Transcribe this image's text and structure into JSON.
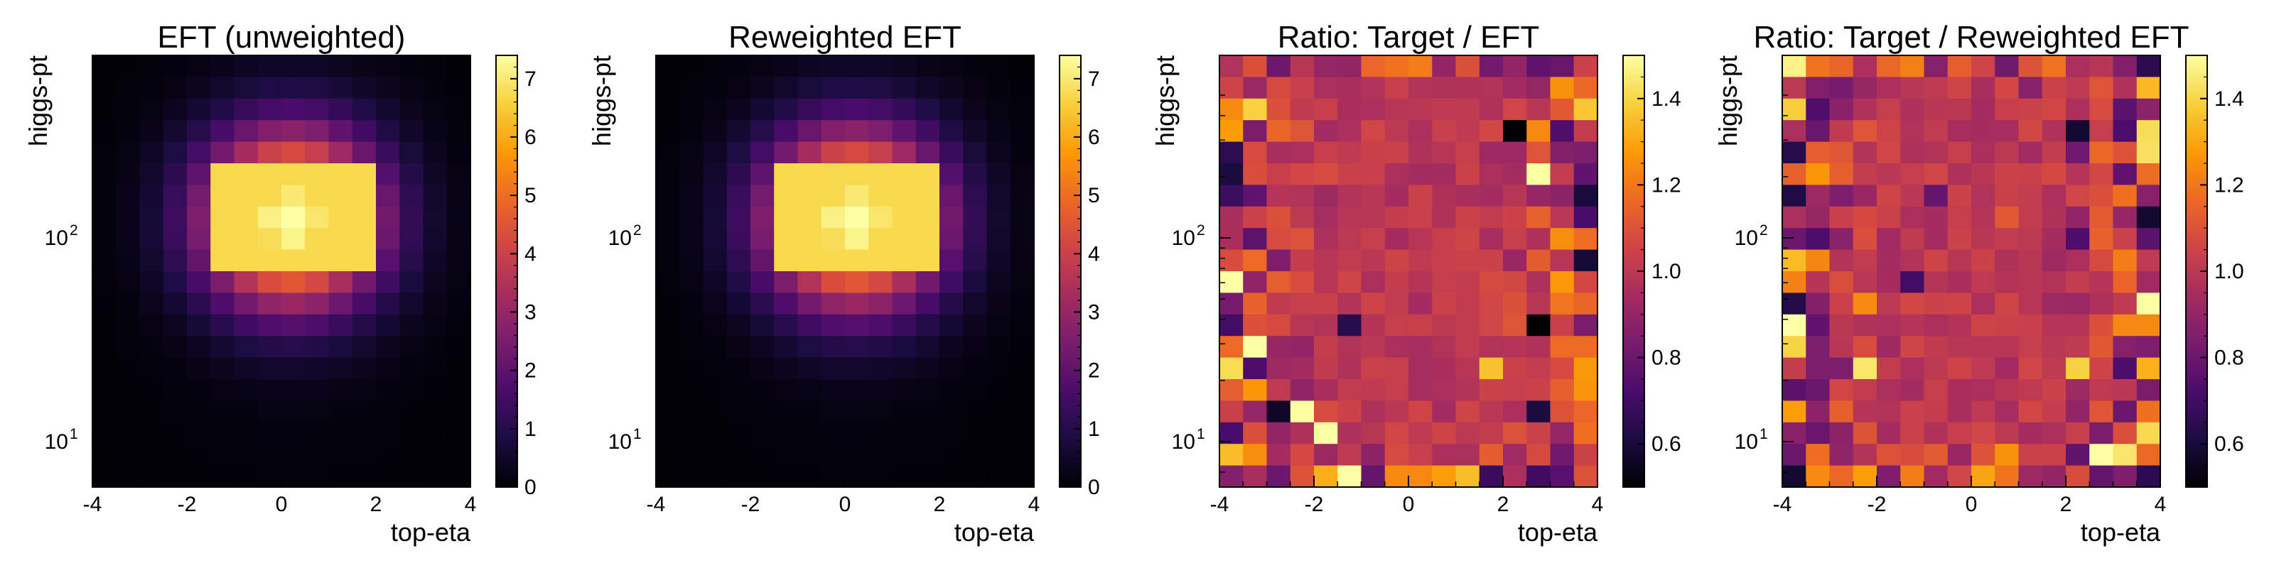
{
  "colormap": [
    "#000004",
    "#1b0c41",
    "#4a0c6b",
    "#781c6d",
    "#a52c60",
    "#cf4446",
    "#ed6925",
    "#fb9b06",
    "#f7d13d",
    "#fcffa4"
  ],
  "chart_data": [
    {
      "type": "heatmap",
      "title": "EFT (unweighted)",
      "xlabel": "top-eta",
      "ylabel": "higgs-pt",
      "xlim": [
        -4,
        4
      ],
      "x_ticks": [
        "-4",
        "-2",
        "0",
        "2",
        "4"
      ],
      "y_scale": "log",
      "y_ticks": [
        "10",
        "10"
      ],
      "y_tick_exponents": [
        "1",
        "2"
      ],
      "grid": [
        16,
        20
      ],
      "colorbar": {
        "range": [
          0,
          7.4
        ],
        "ticks": [
          "0",
          "1",
          "2",
          "3",
          "4",
          "5",
          "6",
          "7"
        ]
      },
      "peak_value": 7.3,
      "peak_center": [
        0.2,
        8.6
      ]
    },
    {
      "type": "heatmap",
      "title": "Reweighted EFT",
      "xlabel": "top-eta",
      "ylabel": "higgs-pt",
      "xlim": [
        -4,
        4
      ],
      "x_ticks": [
        "-4",
        "-2",
        "0",
        "2",
        "4"
      ],
      "y_scale": "log",
      "y_ticks": [
        "10",
        "10"
      ],
      "y_tick_exponents": [
        "1",
        "2"
      ],
      "grid": [
        16,
        20
      ],
      "colorbar": {
        "range": [
          0,
          7.4
        ],
        "ticks": [
          "0",
          "1",
          "2",
          "3",
          "4",
          "5",
          "6",
          "7"
        ]
      },
      "peak_value": 7.3,
      "peak_center": [
        0.2,
        8.6
      ]
    },
    {
      "type": "heatmap",
      "title": "Ratio: Target / EFT",
      "xlabel": "top-eta",
      "ylabel": "higgs-pt",
      "xlim": [
        -4,
        4
      ],
      "x_ticks": [
        "-4",
        "-2",
        "0",
        "2",
        "4"
      ],
      "y_scale": "log",
      "y_ticks": [
        "10",
        "10"
      ],
      "y_tick_exponents": [
        "1",
        "2"
      ],
      "grid": [
        16,
        20
      ],
      "colorbar": {
        "range": [
          0.5,
          1.5
        ],
        "ticks": [
          "0.6",
          "0.8",
          "1.0",
          "1.2",
          "1.4"
        ]
      },
      "ratio_center": 1.0
    },
    {
      "type": "heatmap",
      "title": "Ratio: Target / Reweighted EFT",
      "xlabel": "top-eta",
      "ylabel": "higgs-pt",
      "xlim": [
        -4,
        4
      ],
      "x_ticks": [
        "-4",
        "-2",
        "0",
        "2",
        "4"
      ],
      "y_scale": "log",
      "y_ticks": [
        "10",
        "10"
      ],
      "y_tick_exponents": [
        "1",
        "2"
      ],
      "grid": [
        16,
        20
      ],
      "colorbar": {
        "range": [
          0.5,
          1.5
        ],
        "ticks": [
          "0.6",
          "0.8",
          "1.0",
          "1.2",
          "1.4"
        ]
      },
      "ratio_center": 1.0
    }
  ]
}
